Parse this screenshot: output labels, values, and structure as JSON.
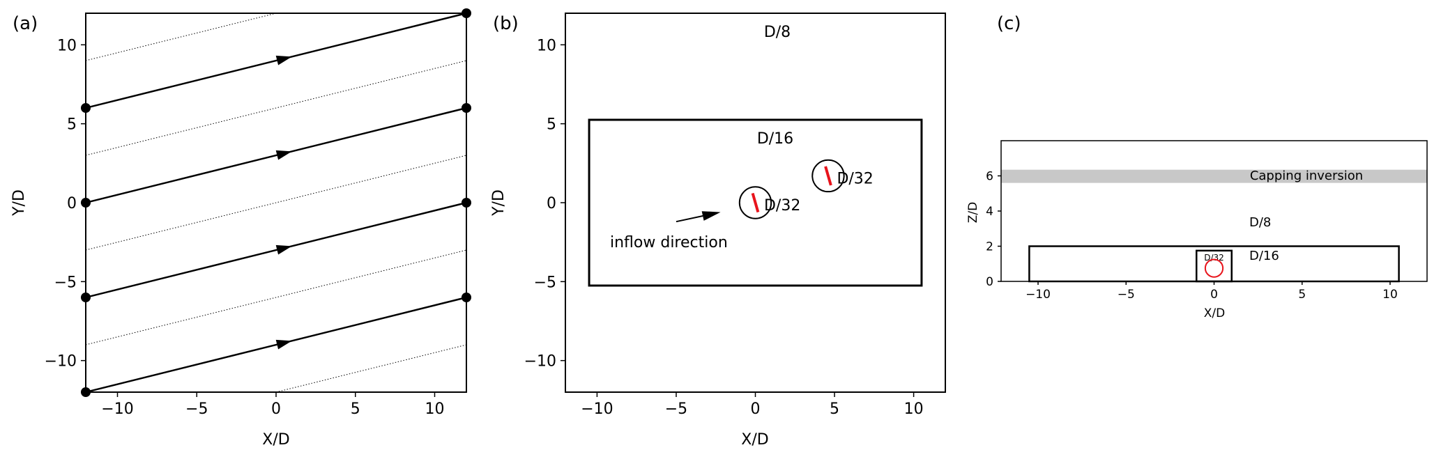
{
  "panel_a": {
    "label": "(a)",
    "xlabel": "X/D",
    "ylabel": "Y/D",
    "xlim": [
      -12,
      12
    ],
    "ylim": [
      -12,
      12
    ],
    "xticks": [
      -10,
      -5,
      0,
      5,
      10
    ],
    "yticks": [
      -10,
      -5,
      0,
      5,
      10
    ],
    "xtick_labels": [
      "−10",
      "−5",
      "0",
      "5",
      "10"
    ],
    "ytick_labels": [
      "−10",
      "−5",
      "0",
      "5",
      "10"
    ],
    "solid_lines": [
      {
        "x1": -12,
        "y1": 6,
        "x2": 12,
        "y2": 12,
        "arrow_x": 1
      },
      {
        "x1": -12,
        "y1": 0,
        "x2": 12,
        "y2": 6,
        "arrow_x": 1
      },
      {
        "x1": -12,
        "y1": -6,
        "x2": 12,
        "y2": 0,
        "arrow_x": 1
      },
      {
        "x1": -12,
        "y1": -12,
        "x2": 12,
        "y2": -6,
        "arrow_x": 1
      }
    ],
    "dotted_lines": [
      {
        "x1": -12,
        "y1": 9,
        "x2": 0,
        "y2": 12
      },
      {
        "x1": -12,
        "y1": 3,
        "x2": 12,
        "y2": 9
      },
      {
        "x1": -12,
        "y1": -3,
        "x2": 12,
        "y2": 3
      },
      {
        "x1": -12,
        "y1": -9,
        "x2": 12,
        "y2": -3
      },
      {
        "x1": 0,
        "y1": -12,
        "x2": 12,
        "y2": -9
      }
    ],
    "dots": [
      {
        "x": -12,
        "y": 6
      },
      {
        "x": -12,
        "y": 0
      },
      {
        "x": -12,
        "y": -6
      },
      {
        "x": -12,
        "y": -12
      },
      {
        "x": 12,
        "y": 12
      },
      {
        "x": 12,
        "y": 6
      },
      {
        "x": 12,
        "y": 0
      },
      {
        "x": 12,
        "y": -6
      }
    ]
  },
  "panel_b": {
    "label": "(b)",
    "xlabel": "X/D",
    "ylabel": "Y/D",
    "xlim": [
      -12,
      12
    ],
    "ylim": [
      -12,
      12
    ],
    "xticks": [
      -10,
      -5,
      0,
      5,
      10
    ],
    "yticks": [
      -10,
      -5,
      0,
      5,
      10
    ],
    "xtick_labels": [
      "−10",
      "−5",
      "0",
      "5",
      "10"
    ],
    "ytick_labels": [
      "−10",
      "−5",
      "0",
      "5",
      "10"
    ],
    "outer_label": "D/8",
    "inner_label": "D/16",
    "inner_box": {
      "x1": -10.5,
      "x2": 10.5,
      "y1": -5.25,
      "y2": 5.25
    },
    "turbines": [
      {
        "x": 0,
        "y": 0,
        "r": 1,
        "label": "D/32"
      },
      {
        "x": 4.6,
        "y": 1.7,
        "r": 1,
        "label": "D/32"
      }
    ],
    "inflow_label": "inflow direction",
    "inflow_arrow": {
      "x1": -5,
      "y1": -1.2,
      "x2": -2.2,
      "y2": -0.6
    },
    "rotor_color": "#e8141c"
  },
  "panel_c": {
    "label": "(c)",
    "xlabel": "X/D",
    "ylabel": "Z/D",
    "xlim": [
      -12.1,
      12.1
    ],
    "ylim": [
      0,
      8
    ],
    "xticks": [
      -10,
      -5,
      0,
      5,
      10
    ],
    "yticks": [
      0,
      2,
      4,
      6
    ],
    "xtick_labels": [
      "−10",
      "−5",
      "0",
      "5",
      "10"
    ],
    "ytick_labels": [
      "0",
      "2",
      "4",
      "6"
    ],
    "inversion_label": "Capping inversion",
    "inversion_band": {
      "z1": 5.6,
      "z2": 6.35
    },
    "inversion_color": "#c8c8c8",
    "outer_label": "D/8",
    "inner_label": "D/16",
    "inner_box": {
      "x1": -10.5,
      "x2": 10.5,
      "z1": 0,
      "z2": 2
    },
    "fine_box": {
      "x1": -1,
      "x2": 1,
      "z1": 0,
      "z2": 1.75
    },
    "fine_label": "D/32",
    "rotor": {
      "x": 0,
      "z": 0.75,
      "r": 0.5
    },
    "rotor_color": "#e8141c"
  }
}
